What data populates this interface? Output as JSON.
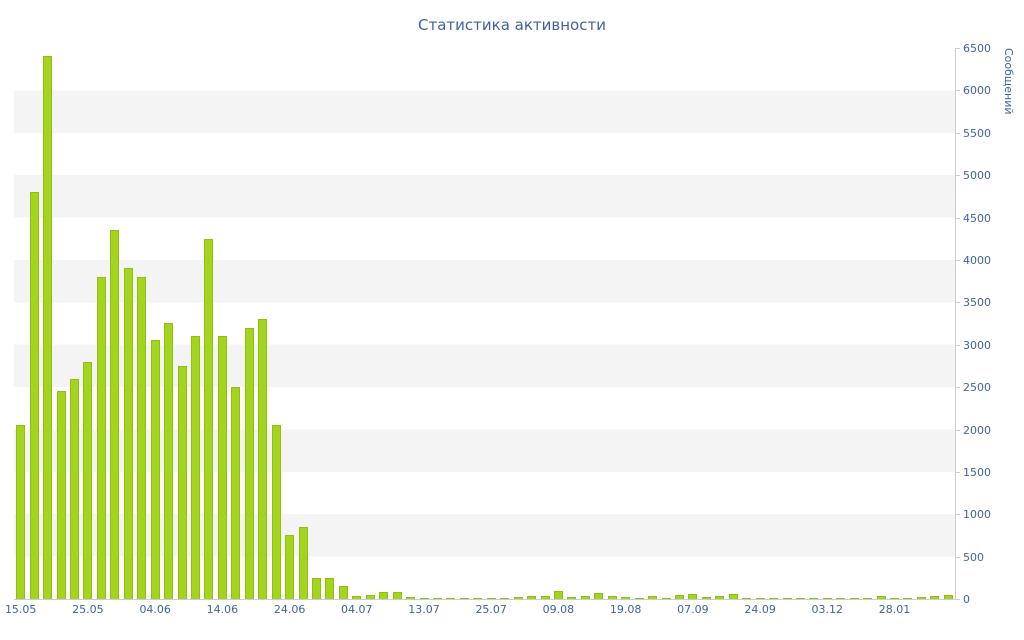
{
  "title": "Статистика активности",
  "chart_data": {
    "type": "bar",
    "title": "Статистика активности",
    "xlabel": "",
    "ylabel": "Сообщений",
    "ylim": [
      0,
      6500
    ],
    "ytick_step": 500,
    "grid": "horizontal-bands",
    "legend": "none",
    "y_tick_labels": [
      "0",
      "500",
      "1000",
      "1500",
      "2000",
      "2500",
      "3000",
      "3500",
      "4000",
      "4500",
      "5000",
      "5500",
      "6000",
      "6500"
    ],
    "x_tick_labels": [
      {
        "label": "15.05",
        "index": 0
      },
      {
        "label": "25.05",
        "index": 5
      },
      {
        "label": "04.06",
        "index": 10
      },
      {
        "label": "14.06",
        "index": 15
      },
      {
        "label": "24.06",
        "index": 20
      },
      {
        "label": "04.07",
        "index": 25
      },
      {
        "label": "13.07",
        "index": 30
      },
      {
        "label": "25.07",
        "index": 35
      },
      {
        "label": "09.08",
        "index": 40
      },
      {
        "label": "19.08",
        "index": 45
      },
      {
        "label": "07.09",
        "index": 50
      },
      {
        "label": "24.09",
        "index": 55
      },
      {
        "label": "03.12",
        "index": 60
      },
      {
        "label": "28.01",
        "index": 65
      }
    ],
    "values": [
      2050,
      4800,
      6400,
      2450,
      2600,
      2800,
      3800,
      4350,
      3900,
      3800,
      3050,
      3250,
      2750,
      3100,
      4250,
      3100,
      2500,
      3200,
      3300,
      2050,
      750,
      850,
      250,
      250,
      150,
      30,
      50,
      80,
      80,
      20,
      15,
      10,
      10,
      15,
      10,
      15,
      10,
      20,
      30,
      40,
      100,
      20,
      30,
      70,
      30,
      20,
      15,
      40,
      15,
      50,
      60,
      20,
      40,
      60,
      15,
      10,
      15,
      10,
      10,
      15,
      10,
      10,
      15,
      10,
      30,
      15,
      10,
      20,
      40,
      50
    ],
    "colors": {
      "bar": "#a4d41e",
      "bar_border": "#8fbf12",
      "text": "#40639c",
      "axis_line": "#c8cdd6",
      "band": "#f4f4f4"
    }
  }
}
